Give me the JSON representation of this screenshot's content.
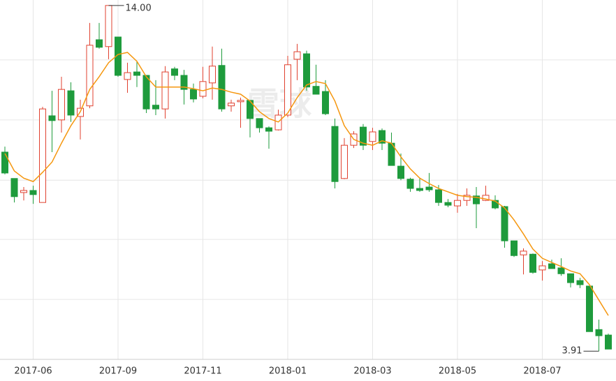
{
  "chart_data": {
    "type": "candlestick",
    "categories": [
      null,
      null,
      null,
      "2017-06",
      null,
      null,
      null,
      null,
      null,
      null,
      null,
      null,
      "2017-09",
      null,
      null,
      null,
      null,
      null,
      null,
      null,
      null,
      "2017-11",
      null,
      null,
      null,
      null,
      null,
      null,
      null,
      null,
      "2018-01",
      null,
      null,
      null,
      null,
      null,
      null,
      null,
      null,
      "2018-03",
      null,
      null,
      null,
      null,
      null,
      null,
      null,
      null,
      "2018-05",
      null,
      null,
      null,
      null,
      null,
      null,
      null,
      null,
      "2018-07",
      null,
      null,
      null,
      null,
      null,
      null,
      null
    ],
    "open": [
      9.72,
      8.95,
      8.54,
      8.6,
      8.25,
      10.78,
      10.66,
      11.51,
      10.76,
      11.07,
      13.0,
      12.8,
      13.08,
      11.84,
      12.06,
      11.96,
      11.09,
      10.98,
      12.15,
      11.96,
      11.55,
      11.35,
      11.74,
      12.25,
      11.07,
      11.19,
      11.23,
      10.7,
      10.43,
      10.37,
      10.8,
      12.43,
      12.59,
      11.64,
      11.49,
      10.47,
      8.95,
      9.92,
      10.45,
      10.03,
      10.35,
      9.98,
      9.31,
      8.93,
      8.66,
      8.7,
      8.62,
      8.25,
      8.15,
      8.31,
      8.44,
      8.31,
      8.31,
      8.13,
      7.13,
      6.72,
      6.74,
      6.28,
      6.46,
      6.34,
      6.17,
      5.97,
      5.81,
      4.54,
      4.38
    ],
    "high": [
      9.88,
      8.95,
      8.7,
      8.74,
      11.04,
      11.51,
      11.92,
      11.76,
      11.25,
      13.49,
      13.49,
      14.0,
      13.08,
      12.33,
      12.37,
      11.96,
      11.82,
      12.23,
      12.21,
      12.12,
      11.72,
      12.21,
      12.8,
      12.74,
      11.25,
      11.31,
      11.23,
      10.7,
      10.47,
      10.96,
      12.53,
      12.88,
      12.68,
      12.27,
      11.82,
      10.7,
      10.13,
      10.33,
      10.54,
      10.43,
      10.41,
      10.29,
      9.68,
      8.97,
      8.97,
      9.11,
      8.76,
      8.35,
      8.5,
      8.66,
      8.7,
      8.74,
      8.46,
      8.15,
      7.13,
      6.91,
      6.76,
      6.54,
      6.58,
      6.62,
      6.17,
      6.05,
      5.81,
      4.83,
      4.42
    ],
    "low": [
      9.07,
      8.25,
      8.31,
      8.21,
      8.25,
      9.72,
      10.29,
      10.6,
      10.09,
      11.0,
      12.74,
      12.43,
      11.92,
      11.45,
      11.62,
      10.86,
      10.8,
      10.7,
      11.82,
      11.11,
      11.17,
      11.29,
      11.25,
      10.9,
      10.9,
      10.43,
      10.15,
      10.29,
      9.82,
      10.35,
      10.74,
      11.82,
      11.51,
      11.41,
      10.8,
      8.66,
      8.93,
      9.84,
      9.78,
      9.78,
      9.78,
      9.33,
      8.9,
      8.56,
      8.56,
      8.56,
      8.15,
      8.11,
      7.95,
      8.15,
      7.5,
      8.29,
      8.05,
      6.93,
      6.66,
      6.15,
      6.17,
      5.97,
      6.32,
      6.11,
      5.77,
      5.75,
      4.48,
      3.91,
      3.97
    ],
    "close": [
      9.11,
      8.42,
      8.6,
      8.48,
      10.98,
      10.64,
      11.55,
      10.8,
      11.0,
      12.84,
      12.78,
      14.0,
      11.96,
      12.04,
      11.96,
      10.98,
      10.98,
      12.06,
      11.96,
      11.55,
      11.27,
      11.78,
      12.23,
      10.98,
      11.15,
      11.23,
      10.7,
      10.43,
      10.33,
      10.8,
      12.27,
      12.65,
      11.62,
      11.41,
      10.84,
      8.86,
      9.92,
      10.25,
      9.92,
      10.31,
      9.98,
      9.33,
      8.95,
      8.66,
      8.6,
      8.62,
      8.25,
      8.17,
      8.31,
      8.46,
      8.21,
      8.46,
      8.09,
      7.13,
      6.7,
      6.83,
      6.21,
      6.4,
      6.32,
      6.17,
      5.91,
      5.85,
      4.48,
      4.36,
      3.97
    ],
    "up_color": "#e0412f",
    "down_color": "#1e9b3c",
    "ma": {
      "color": "#f5970f",
      "values": [
        9.68,
        9.17,
        8.96,
        8.86,
        9.13,
        9.43,
        9.98,
        10.49,
        10.9,
        11.55,
        11.92,
        12.33,
        12.57,
        12.63,
        12.37,
        11.92,
        11.62,
        11.62,
        11.62,
        11.62,
        11.57,
        11.51,
        11.59,
        11.55,
        11.47,
        11.41,
        11.21,
        10.9,
        10.7,
        10.6,
        10.86,
        11.31,
        11.68,
        11.78,
        11.72,
        11.21,
        10.49,
        10.09,
        9.98,
        9.92,
        10.05,
        9.98,
        9.58,
        9.23,
        8.96,
        8.8,
        8.66,
        8.56,
        8.46,
        8.42,
        8.4,
        8.35,
        8.29,
        8.09,
        7.74,
        7.33,
        6.89,
        6.62,
        6.5,
        6.38,
        6.25,
        6.17,
        5.85,
        5.4,
        4.95
      ]
    },
    "ylim": [
      3.67,
      14.16
    ],
    "yticks": [
      5.42,
      7.17,
      8.9,
      10.66,
      12.41
    ],
    "grid": true,
    "annotations": [
      "14.00",
      "3.91"
    ],
    "watermark": "雪球"
  }
}
